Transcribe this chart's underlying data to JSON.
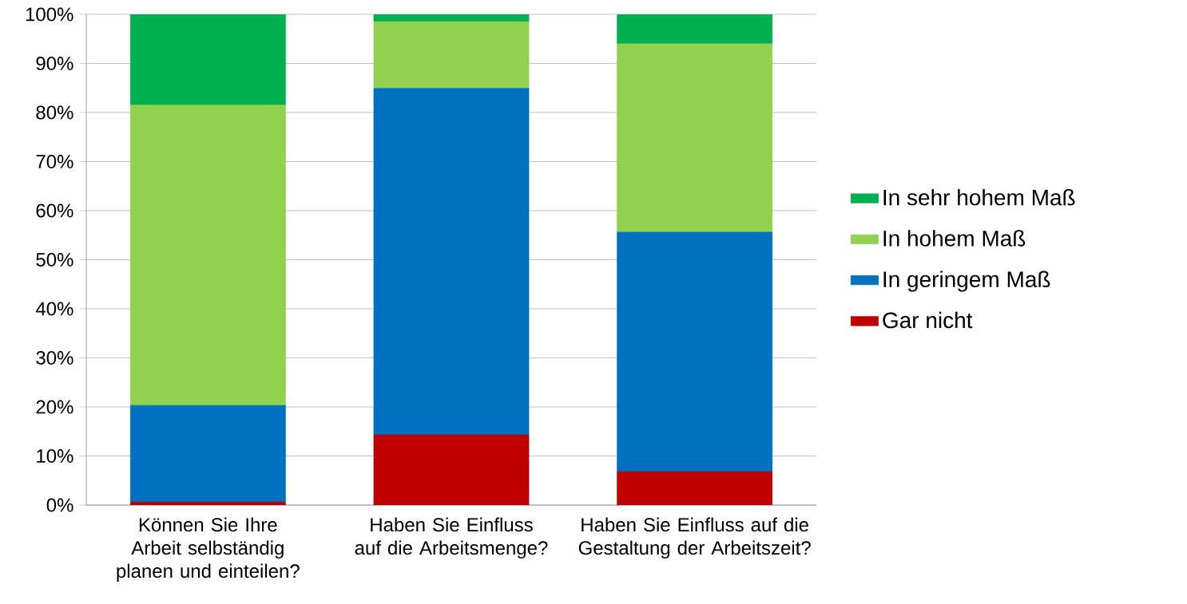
{
  "chart_data": {
    "type": "bar",
    "stacked": true,
    "categories": [
      "Können Sie Ihre Arbeit selbständig planen und einteilen?",
      "Haben Sie Einfluss auf die Arbeitsmenge?",
      "Haben Sie Einfluss auf die Gestaltung der Arbeitszeit?"
    ],
    "series": [
      {
        "name": "Gar nicht",
        "color": "#c00000",
        "values": [
          0.6,
          14.3,
          6.8
        ]
      },
      {
        "name": "In geringem Maß",
        "color": "#0070c0",
        "values": [
          19.7,
          70.6,
          48.8
        ]
      },
      {
        "name": "In hohem Maß",
        "color": "#92d050",
        "values": [
          61.2,
          13.6,
          38.4
        ]
      },
      {
        "name": "In sehr hohem Maß",
        "color": "#00b050",
        "values": [
          18.5,
          1.5,
          6.0
        ]
      }
    ],
    "ylim": [
      0,
      100
    ],
    "yticks": [
      {
        "value": 0,
        "label": "0%"
      },
      {
        "value": 10,
        "label": "10%"
      },
      {
        "value": 20,
        "label": "20%"
      },
      {
        "value": 30,
        "label": "30%"
      },
      {
        "value": 40,
        "label": "40%"
      },
      {
        "value": 50,
        "label": "50%"
      },
      {
        "value": 60,
        "label": "60%"
      },
      {
        "value": 70,
        "label": "70%"
      },
      {
        "value": 80,
        "label": "80%"
      },
      {
        "value": 90,
        "label": "90%"
      },
      {
        "value": 100,
        "label": "100%"
      }
    ],
    "grid": "y",
    "legend": "right"
  }
}
